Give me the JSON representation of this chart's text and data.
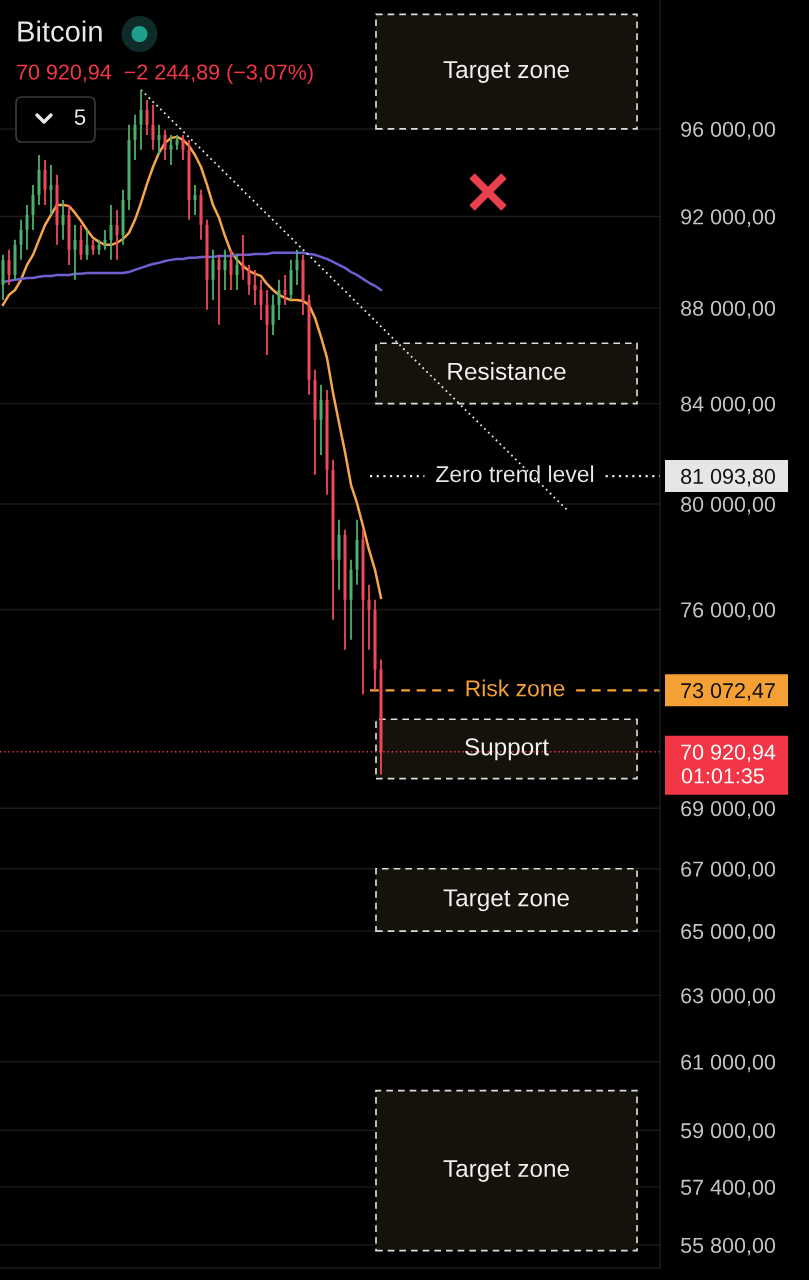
{
  "chart_data": {
    "type": "candlestick",
    "title": "Bitcoin",
    "subtitle": "70 920,94  −2 244,89 (−3,07%)",
    "categories": [
      null,
      null,
      null,
      null,
      null,
      null,
      null,
      null,
      null,
      null,
      null,
      null,
      null,
      null,
      null,
      null,
      null,
      null,
      null,
      null,
      null,
      null,
      null,
      null,
      null,
      null,
      null,
      null,
      null,
      null,
      null,
      null,
      null,
      null,
      null,
      null,
      null,
      null,
      null,
      null,
      null,
      null,
      null,
      null,
      null,
      null,
      null,
      null,
      null,
      null,
      null,
      null,
      null,
      null,
      null,
      null,
      null,
      null,
      null,
      null,
      null,
      null,
      null,
      null,
      null,
      null,
      null,
      null,
      null,
      null,
      null,
      null,
      null,
      null,
      null,
      null,
      null,
      null,
      null,
      null,
      null,
      null,
      null,
      null,
      null,
      null,
      null,
      null,
      null,
      null,
      null,
      null,
      null,
      null,
      null,
      null,
      null,
      null,
      null,
      null,
      null,
      null,
      null,
      null,
      null,
      null,
      null,
      null,
      null,
      null
    ],
    "ohlc": [
      [
        88990,
        90300,
        88340,
        90080
      ],
      [
        90080,
        90520,
        88990,
        89420
      ],
      [
        89420,
        90960,
        89210,
        90740
      ],
      [
        90740,
        91850,
        90080,
        91400
      ],
      [
        91400,
        92520,
        90520,
        92070
      ],
      [
        92070,
        93420,
        91400,
        92970
      ],
      [
        92970,
        94790,
        92520,
        94110
      ],
      [
        94110,
        94560,
        92520,
        93200
      ],
      [
        93200,
        94330,
        92070,
        93420
      ],
      [
        93420,
        93880,
        90740,
        91620
      ],
      [
        91620,
        92740,
        90960,
        92070
      ],
      [
        92070,
        92520,
        89860,
        90520
      ],
      [
        90520,
        91620,
        89210,
        90960
      ],
      [
        90960,
        91620,
        90080,
        90300
      ],
      [
        90300,
        91400,
        90080,
        90740
      ],
      [
        90740,
        90960,
        90300,
        90520
      ],
      [
        90520,
        90960,
        90300,
        90740
      ],
      [
        90740,
        91400,
        90520,
        90960
      ],
      [
        90960,
        92520,
        90080,
        91620
      ],
      [
        91620,
        92290,
        90080,
        91180
      ],
      [
        91180,
        93200,
        90740,
        92740
      ],
      [
        92740,
        96190,
        92290,
        95490
      ],
      [
        95490,
        96660,
        94560,
        96190
      ],
      [
        96190,
        97840,
        95030,
        96890
      ],
      [
        96890,
        97360,
        95720,
        96190
      ],
      [
        96190,
        97130,
        95030,
        95490
      ],
      [
        95490,
        96190,
        94790,
        95720
      ],
      [
        95720,
        95950,
        94560,
        95030
      ],
      [
        95030,
        95720,
        94330,
        95260
      ],
      [
        95260,
        95720,
        95030,
        95490
      ],
      [
        95490,
        95720,
        94560,
        95030
      ],
      [
        95030,
        95490,
        91850,
        92740
      ],
      [
        92740,
        93420,
        92070,
        92970
      ],
      [
        92970,
        93200,
        90960,
        91620
      ],
      [
        91620,
        91850,
        87920,
        89210
      ],
      [
        89210,
        90520,
        88340,
        90080
      ],
      [
        90080,
        90300,
        87280,
        89640
      ],
      [
        89640,
        90520,
        88770,
        90080
      ],
      [
        90080,
        90520,
        88770,
        89420
      ],
      [
        89420,
        90300,
        88770,
        89860
      ],
      [
        89860,
        91180,
        89210,
        89640
      ],
      [
        89640,
        89860,
        88560,
        88990
      ],
      [
        88990,
        89640,
        88130,
        88770
      ],
      [
        88770,
        89210,
        87490,
        88130
      ],
      [
        88130,
        88770,
        86010,
        87280
      ],
      [
        87280,
        88560,
        86850,
        88130
      ],
      [
        88130,
        89210,
        87490,
        88770
      ],
      [
        88770,
        89420,
        88130,
        88560
      ],
      [
        88560,
        90080,
        88340,
        89640
      ],
      [
        89640,
        90520,
        88990,
        90080
      ],
      [
        90080,
        90300,
        87700,
        88340
      ],
      [
        88340,
        88560,
        84360,
        84980
      ],
      [
        84980,
        85390,
        81140,
        83340
      ],
      [
        83340,
        84770,
        81930,
        84150
      ],
      [
        84150,
        84560,
        80360,
        81340
      ],
      [
        81340,
        81740,
        75620,
        77860
      ],
      [
        77860,
        79390,
        76730,
        78810
      ],
      [
        78810,
        79000,
        74530,
        76360
      ],
      [
        76360,
        77860,
        74890,
        77480
      ],
      [
        77480,
        79390,
        76920,
        78620
      ],
      [
        78620,
        79000,
        72920,
        76360
      ],
      [
        76360,
        76920,
        74530,
        75990
      ],
      [
        75990,
        76360,
        73090,
        73810
      ],
      [
        73810,
        74170,
        70140,
        70920.94
      ],
      null,
      null,
      null,
      null,
      null,
      null,
      null,
      null,
      null,
      null,
      null,
      null,
      null,
      null,
      null,
      null,
      null,
      null,
      null,
      null,
      null,
      null,
      null,
      null,
      null,
      null,
      null,
      null,
      null,
      null,
      null,
      null,
      null,
      null,
      null,
      null,
      null,
      null,
      null,
      null,
      null,
      null,
      null,
      null,
      null,
      null
    ],
    "colors": [
      "#4caf6a",
      "#ef4957",
      "#4caf6a",
      "#4caf6a",
      "#4caf6a",
      "#4caf6a",
      "#4caf6a",
      "#ef4957",
      "#4caf6a",
      "#ef4957",
      "#4caf6a",
      "#ef4957",
      "#4caf6a",
      "#ef4957",
      "#4caf6a",
      "#ef4957",
      "#4caf6a",
      "#4caf6a",
      "#4caf6a",
      "#ef4957",
      "#4caf6a",
      "#4caf6a",
      "#4caf6a",
      "#4caf6a",
      "#ef4957",
      "#ef4957",
      "#4caf6a",
      "#ef4957",
      "#4caf6a",
      "#4caf6a",
      "#ef4957",
      "#ef4957",
      "#4caf6a",
      "#ef4957",
      "#ef4957",
      "#4caf6a",
      "#ef4957",
      "#4caf6a",
      "#ef4957",
      "#4caf6a",
      "#ef4957",
      "#ef4957",
      "#ef4957",
      "#ef4957",
      "#ef4957",
      "#4caf6a",
      "#4caf6a",
      "#ef4957",
      "#4caf6a",
      "#4caf6a",
      "#ef4957",
      "#ef4957",
      "#ef4957",
      "#4caf6a",
      "#ef4957",
      "#ef4957",
      "#4caf6a",
      "#ef4957",
      "#4caf6a",
      "#4caf6a",
      "#ef4957",
      "#ef4957",
      "#ef4957",
      "#ef4957",
      null,
      null,
      null,
      null,
      null,
      null,
      null,
      null,
      null,
      null,
      null,
      null,
      null,
      null,
      null,
      null,
      null,
      null,
      null,
      null,
      null,
      null,
      null,
      null,
      null,
      null,
      null,
      null,
      null,
      null,
      null,
      null,
      null,
      null,
      null,
      null,
      null,
      null,
      null,
      null,
      null,
      null,
      null,
      null,
      null,
      null
    ],
    "series": [
      {
        "type": "line",
        "color": "#f5a54a",
        "values": [
          88130,
          88560,
          88770,
          89210,
          89860,
          90300,
          90960,
          91620,
          92070,
          92520,
          92520,
          92470,
          92160,
          91800,
          91400,
          91050,
          90870,
          90740,
          90740,
          90830,
          91000,
          91270,
          91850,
          92610,
          93470,
          94240,
          94890,
          95350,
          95580,
          95630,
          95490,
          95210,
          94790,
          94240,
          93420,
          92520,
          91940,
          91130,
          90430,
          90080,
          89820,
          89600,
          89470,
          89380,
          89030,
          88770,
          88560,
          88430,
          88340,
          88340,
          88300,
          88130,
          87570,
          86770,
          85890,
          84440,
          83220,
          82050,
          80750,
          80030,
          79150,
          78240,
          77480,
          76430,
          null,
          null,
          null,
          null,
          null,
          null,
          null,
          null,
          null,
          null,
          null,
          null,
          null,
          null,
          null,
          null,
          null,
          null,
          null,
          null,
          null,
          null,
          null,
          null,
          null,
          null,
          null,
          null,
          null,
          null,
          null,
          null,
          null,
          null,
          null,
          null,
          null,
          null,
          null,
          null,
          null,
          null,
          null,
          null,
          null,
          null
        ]
      },
      {
        "type": "line",
        "color": "#6c5fd0",
        "values": [
          89120,
          89160,
          89210,
          89250,
          89290,
          89290,
          89340,
          89380,
          89380,
          89420,
          89420,
          89420,
          89470,
          89470,
          89510,
          89510,
          89510,
          89510,
          89510,
          89510,
          89510,
          89550,
          89640,
          89730,
          89820,
          89900,
          89950,
          90030,
          90080,
          90120,
          90120,
          90170,
          90170,
          90210,
          90210,
          90210,
          90250,
          90250,
          90250,
          90300,
          90300,
          90300,
          90340,
          90340,
          90340,
          90390,
          90390,
          90390,
          90390,
          90390,
          90390,
          90340,
          90300,
          90210,
          90120,
          89990,
          89860,
          89730,
          89550,
          89420,
          89250,
          89080,
          88950,
          88770,
          null,
          null,
          null,
          null,
          null,
          null,
          null,
          null,
          null,
          null,
          null,
          null,
          null,
          null,
          null,
          null,
          null,
          null,
          null,
          null,
          null,
          null,
          null,
          null,
          null,
          null,
          null,
          null,
          null,
          null,
          null,
          null,
          null,
          null,
          null,
          null,
          null,
          null,
          null,
          null,
          null,
          null,
          null,
          null,
          null,
          null
        ]
      },
      {
        "type": "line",
        "color": "#e6e6e6",
        "line_style": "dotted",
        "values": [
          null,
          null,
          null,
          null,
          null,
          null,
          null,
          null,
          null,
          null,
          null,
          null,
          null,
          null,
          null,
          null,
          null,
          null,
          null,
          null,
          null,
          null,
          null,
          97840,
          null,
          null,
          null,
          null,
          null,
          null,
          null,
          null,
          null,
          null,
          null,
          null,
          null,
          null,
          null,
          null,
          null,
          null,
          null,
          null,
          null,
          null,
          null,
          null,
          null,
          null,
          null,
          null,
          null,
          null,
          null,
          null,
          null,
          null,
          null,
          null,
          null,
          null,
          null,
          null,
          null,
          null,
          null,
          null,
          null,
          null,
          null,
          null,
          null,
          null,
          null,
          null,
          null,
          null,
          null,
          null,
          null,
          null,
          null,
          null,
          null,
          null,
          null,
          null,
          null,
          null,
          null,
          null,
          null,
          null,
          79770,
          null,
          null,
          null,
          null,
          null,
          null,
          null,
          null,
          null,
          null,
          null,
          null,
          null,
          null,
          null
        ]
      }
    ],
    "log": true,
    "ylim": [
      55180,
      102210
    ],
    "yticks": [
      {
        "value": 96000,
        "label": "96 000,00"
      },
      {
        "value": 92000,
        "label": "92 000,00"
      },
      {
        "value": 88000,
        "label": "88 000,00"
      },
      {
        "value": 84000,
        "label": "84 000,00"
      },
      {
        "value": 81093.8,
        "label": "81 093,80"
      },
      {
        "value": 80000,
        "label": "80 000,00"
      },
      {
        "value": 76000,
        "label": "76 000,00"
      },
      {
        "value": 73072.47,
        "label": "73 072,47"
      },
      {
        "value": 70920.94,
        "label": "70 920,94"
      },
      {
        "value": 69000,
        "label": "69 000,00"
      },
      {
        "value": 67000,
        "label": "67 000,00"
      },
      {
        "value": 65000,
        "label": "65 000,00"
      },
      {
        "value": 63000,
        "label": "63 000,00"
      },
      {
        "value": 61000,
        "label": "61 000,00"
      },
      {
        "value": 59000,
        "label": "59 000,00"
      },
      {
        "value": 57400,
        "label": "57 400,00"
      },
      {
        "value": 55800,
        "label": "55 800,00"
      }
    ],
    "grid": "y",
    "tick_labels": "y",
    "ref_lines": [
      {
        "axis": "y",
        "value": 81093.8,
        "label": "Zero trend level",
        "color": "#e6e6e6",
        "line_style": "dotted"
      },
      {
        "axis": "y",
        "value": 73072.47,
        "label": "Risk zone",
        "color": "#f5a035",
        "line_style": "dashed"
      },
      {
        "axis": "y",
        "value": 70920.94,
        "color": "#f23645",
        "line_style": "dotted"
      }
    ],
    "bands": [
      {
        "axis": "y",
        "from": 96000,
        "to": 101500,
        "label": "Target zone",
        "color": "#15110b"
      },
      {
        "axis": "y",
        "from": 84000,
        "to": 86500,
        "label": "Resistance",
        "color": "#15110b"
      },
      {
        "axis": "y",
        "from": 70000,
        "to": 72050,
        "label": "Support",
        "color": "#15110b"
      },
      {
        "axis": "y",
        "from": 65000,
        "to": 67000,
        "label": "Target zone",
        "color": "#15110b"
      },
      {
        "axis": "y",
        "from": 55650,
        "to": 60150,
        "label": "Target zone",
        "color": "#15110b"
      }
    ],
    "annotations": [
      "5",
      "01:01:35"
    ]
  }
}
